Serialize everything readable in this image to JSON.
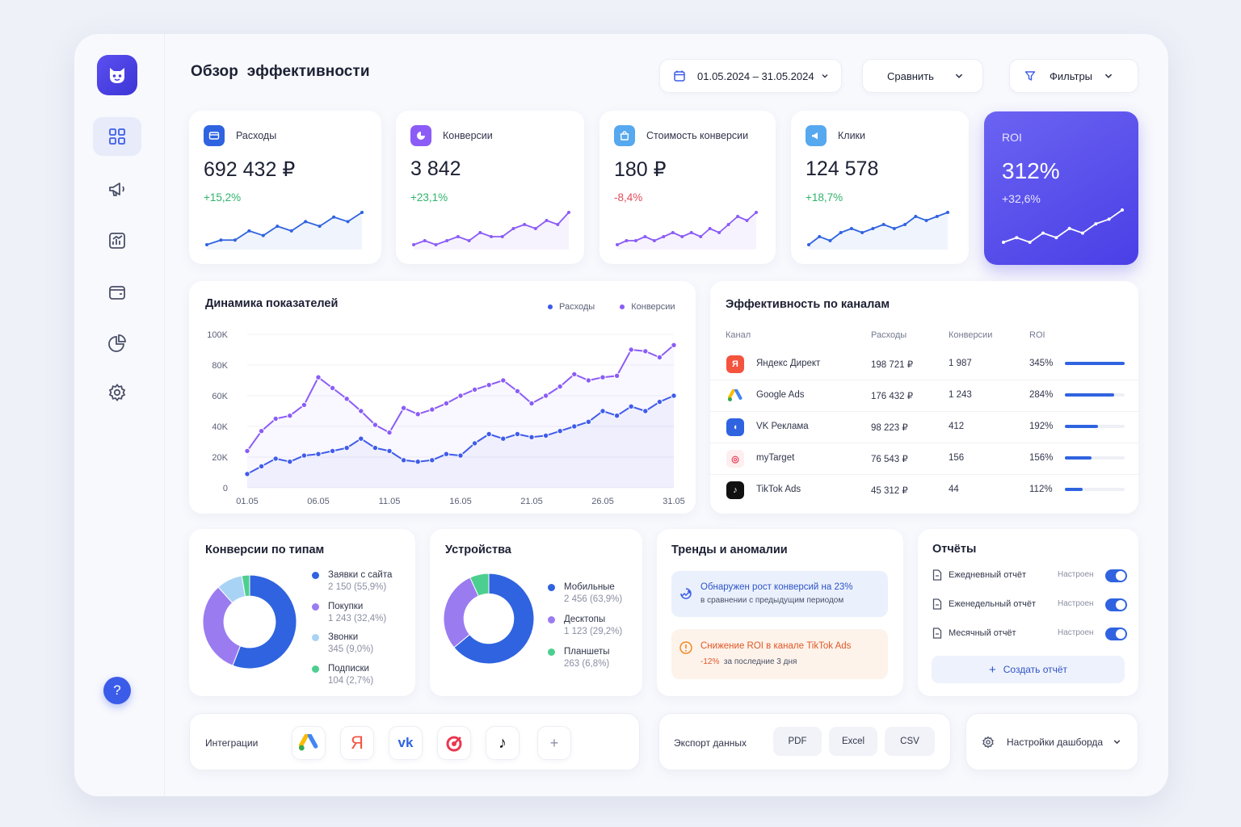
{
  "header": {
    "title": "Обзор  эффективности",
    "date_range": "01.05.2024 – 31.05.2024",
    "compare_label": "Сравнить",
    "filters_label": "Фильтры"
  },
  "colors": {
    "accent": "#4a3fe6",
    "blue": "#2f63e0",
    "purple": "#8b5cf6",
    "green": "#2fb36a",
    "red": "#e24a5a",
    "orange": "#f08a24"
  },
  "nav": [
    "dashboard-icon",
    "megaphone-icon",
    "analytics-icon",
    "wallet-icon",
    "pie-chart-icon",
    "settings-icon"
  ],
  "help_label": "?",
  "kpis": [
    {
      "label": "Расходы",
      "value": "692 432 ₽",
      "delta": "+15,2%",
      "delta_positive": true,
      "color": "#2f63e0",
      "icon": "card-icon",
      "spark": [
        3,
        4,
        4,
        6,
        5,
        7,
        6,
        8,
        7,
        9,
        8,
        10
      ]
    },
    {
      "label": "Конверсии",
      "value": "3 842",
      "delta": "+23,1%",
      "delta_positive": true,
      "color": "#8b5cf6",
      "icon": "pie-icon",
      "spark": [
        3,
        4,
        3,
        4,
        5,
        4,
        6,
        5,
        5,
        7,
        8,
        7,
        9,
        8,
        11
      ]
    },
    {
      "label": "Стоимость конверсии",
      "value": "180 ₽",
      "delta": "-8,4%",
      "delta_positive": false,
      "color": "#8b5cf6",
      "icon": "bag-icon",
      "spark": [
        3,
        4,
        4,
        5,
        4,
        5,
        6,
        5,
        6,
        5,
        7,
        6,
        8,
        10,
        9,
        11
      ]
    },
    {
      "label": "Клики",
      "value": "124 578",
      "delta": "+18,7%",
      "delta_positive": true,
      "color": "#2f63e0",
      "icon": "megaphone-icon",
      "spark": [
        3,
        5,
        4,
        6,
        7,
        6,
        7,
        8,
        7,
        8,
        10,
        9,
        10,
        11
      ]
    }
  ],
  "roi": {
    "label": "ROI",
    "value": "312%",
    "delta": "+32,6%",
    "spark": [
      3,
      4,
      3,
      5,
      4,
      6,
      5,
      7,
      8,
      10
    ]
  },
  "dynamics": {
    "title": "Динамика показателей",
    "legend": [
      "Расходы",
      "Конверсии"
    ]
  },
  "chart_data": {
    "type": "line",
    "title": "Динамика показателей",
    "xlabel": "",
    "ylabel": "",
    "ylim": [
      0,
      100000
    ],
    "yticks": [
      "100K",
      "80K",
      "60K",
      "40K",
      "20K",
      "0"
    ],
    "xticks": [
      "01.05",
      "06.05",
      "11.05",
      "16.05",
      "21.05",
      "26.05",
      "31.05"
    ],
    "x": [
      "01.05",
      "02.05",
      "03.05",
      "04.05",
      "05.05",
      "06.05",
      "07.05",
      "08.05",
      "09.05",
      "10.05",
      "11.05",
      "12.05",
      "13.05",
      "14.05",
      "15.05",
      "16.05",
      "17.05",
      "18.05",
      "19.05",
      "20.05",
      "21.05",
      "22.05",
      "23.05",
      "24.05",
      "25.05",
      "26.05",
      "27.05",
      "28.05",
      "29.05",
      "30.05",
      "31.05"
    ],
    "series": [
      {
        "name": "Расходы",
        "color": "#3b5ce8",
        "values": [
          9000,
          14000,
          19000,
          17000,
          21000,
          22000,
          24000,
          26000,
          32000,
          26000,
          24000,
          18000,
          17000,
          18000,
          22000,
          21000,
          29000,
          35000,
          32000,
          35000,
          33000,
          34000,
          37000,
          40000,
          43000,
          50000,
          47000,
          53000,
          50000,
          56000,
          60000
        ]
      },
      {
        "name": "Конверсии",
        "color": "#8b5cf6",
        "values": [
          24000,
          37000,
          45000,
          47000,
          54000,
          72000,
          65000,
          58000,
          50000,
          41000,
          36000,
          52000,
          48000,
          51000,
          55000,
          60000,
          64000,
          67000,
          70000,
          63000,
          55000,
          60000,
          66000,
          74000,
          70000,
          72000,
          73000,
          90000,
          89000,
          85000,
          93000
        ]
      }
    ]
  },
  "channels": {
    "title": "Эффективность по каналам",
    "headers": [
      "Канал",
      "Расходы",
      "Конверсии",
      "ROI"
    ],
    "rows": [
      {
        "name": "Яндекс Директ",
        "spend": "198 721 ₽",
        "conv": "1 987",
        "roi": "345%",
        "roi_frac": 1.0,
        "icon": "yandex-icon",
        "glyph": "Я"
      },
      {
        "name": "Google Ads",
        "spend": "176 432 ₽",
        "conv": "1 243",
        "roi": "284%",
        "roi_frac": 0.82,
        "icon": "google-ads-icon",
        "glyph": "▲"
      },
      {
        "name": "VK Реклама",
        "spend": "98 223 ₽",
        "conv": "412",
        "roi": "192%",
        "roi_frac": 0.56,
        "icon": "vk-icon",
        "glyph": "◖"
      },
      {
        "name": "myTarget",
        "spend": "76 543 ₽",
        "conv": "156",
        "roi": "156%",
        "roi_frac": 0.45,
        "icon": "mytarget-icon",
        "glyph": "◎"
      },
      {
        "name": "TikTok Ads",
        "spend": "45 312 ₽",
        "conv": "44",
        "roi": "112%",
        "roi_frac": 0.3,
        "icon": "tiktok-icon",
        "glyph": "♪"
      }
    ]
  },
  "conv_types": {
    "title": "Конверсии по типам",
    "items": [
      {
        "name": "Заявки с сайта",
        "value": "2 150 (55,9%)",
        "share": 55.9,
        "color": "#2f63e0"
      },
      {
        "name": "Покупки",
        "value": "1 243 (32,4%)",
        "share": 32.4,
        "color": "#9b7bf0"
      },
      {
        "name": "Звонки",
        "value": "345 (9,0%)",
        "share": 9.0,
        "color": "#a9d3f5"
      },
      {
        "name": "Подписки",
        "value": "104 (2,7%)",
        "share": 2.7,
        "color": "#4ccf8e"
      }
    ]
  },
  "devices": {
    "title": "Устройства",
    "items": [
      {
        "name": "Мобильные",
        "value": "2 456 (63,9%)",
        "share": 63.9,
        "color": "#2f63e0"
      },
      {
        "name": "Десктопы",
        "value": "1 123 (29,2%)",
        "share": 29.2,
        "color": "#9b7bf0"
      },
      {
        "name": "Планшеты",
        "value": "263 (6,8%)",
        "share": 6.8,
        "color": "#4ccf8e"
      }
    ]
  },
  "trends": {
    "title": "Тренды и аномалии",
    "alert1_title": "Обнаружен рост конверсий на 23%",
    "alert1_sub": "в сравнении с предыдущим периодом",
    "alert2_title": "Снижение ROI в канале TikTok Ads",
    "alert2_delta": "-12%",
    "alert2_sub": "за последние 3 дня"
  },
  "reports": {
    "title": "Отчёты",
    "items": [
      {
        "name": "Ежедневный отчёт",
        "status": "Настроен",
        "on": true
      },
      {
        "name": "Еженедельный отчёт",
        "status": "Настроен",
        "on": true
      },
      {
        "name": "Месячный отчёт",
        "status": "Настроен",
        "on": true
      }
    ],
    "create_label": "Создать отчёт"
  },
  "integrations": {
    "label": "Интеграции",
    "icons": [
      "google-ads-icon",
      "yandex-icon",
      "vk-icon",
      "mytarget-icon",
      "tiktok-icon",
      "add-icon"
    ]
  },
  "export": {
    "label": "Экспорт данных",
    "formats": [
      "PDF",
      "Excel",
      "CSV"
    ]
  },
  "dashboard_settings": {
    "label": "Настройки дашборда"
  }
}
